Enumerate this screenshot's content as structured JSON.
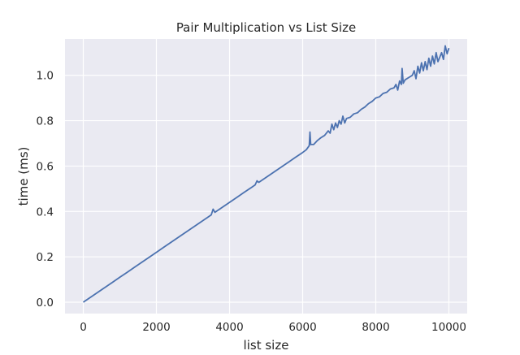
{
  "chart_data": {
    "type": "line",
    "title": "Pair Multiplication vs List Size",
    "xlabel": "list size",
    "ylabel": "time (ms)",
    "xlim": [
      -500,
      10500
    ],
    "ylim": [
      -0.05,
      1.16
    ],
    "x_ticks": [
      0,
      2000,
      4000,
      6000,
      8000,
      10000
    ],
    "y_ticks": [
      0.0,
      0.2,
      0.4,
      0.6,
      0.8,
      1.0
    ],
    "x_tick_labels": [
      "0",
      "2000",
      "4000",
      "6000",
      "8000",
      "10000"
    ],
    "y_tick_labels": [
      "0.0",
      "0.2",
      "0.4",
      "0.6",
      "0.8",
      "1.0"
    ],
    "grid": true,
    "legend": "none",
    "colors": {
      "background": "#eaeaf2",
      "grid": "#ffffff",
      "line": "#4c72b0",
      "text": "#262626"
    },
    "series": [
      {
        "x": [
          0,
          200,
          400,
          600,
          800,
          1000,
          1200,
          1400,
          1600,
          1800,
          2000,
          2200,
          2400,
          2600,
          2800,
          3000,
          3200,
          3400,
          3500,
          3550,
          3600,
          3800,
          4000,
          4200,
          4400,
          4600,
          4700,
          4750,
          4800,
          5000,
          5200,
          5400,
          5600,
          5800,
          6000,
          6100,
          6180,
          6200,
          6220,
          6300,
          6400,
          6500,
          6600,
          6700,
          6750,
          6800,
          6850,
          6900,
          6950,
          7000,
          7050,
          7100,
          7150,
          7200,
          7300,
          7400,
          7500,
          7600,
          7700,
          7800,
          7900,
          8000,
          8100,
          8200,
          8300,
          8400,
          8500,
          8550,
          8600,
          8650,
          8700,
          8720,
          8750,
          8800,
          8900,
          9000,
          9050,
          9100,
          9150,
          9200,
          9250,
          9300,
          9350,
          9400,
          9450,
          9500,
          9550,
          9600,
          9650,
          9700,
          9750,
          9800,
          9850,
          9900,
          9950,
          10000
        ],
        "y": [
          0.0,
          0.022,
          0.044,
          0.066,
          0.088,
          0.11,
          0.132,
          0.154,
          0.176,
          0.198,
          0.22,
          0.242,
          0.264,
          0.286,
          0.308,
          0.33,
          0.352,
          0.374,
          0.385,
          0.41,
          0.396,
          0.418,
          0.44,
          0.462,
          0.484,
          0.506,
          0.517,
          0.535,
          0.528,
          0.55,
          0.572,
          0.594,
          0.616,
          0.638,
          0.66,
          0.672,
          0.69,
          0.75,
          0.695,
          0.695,
          0.712,
          0.725,
          0.735,
          0.755,
          0.745,
          0.785,
          0.76,
          0.79,
          0.77,
          0.8,
          0.785,
          0.82,
          0.79,
          0.81,
          0.815,
          0.83,
          0.835,
          0.85,
          0.86,
          0.875,
          0.885,
          0.9,
          0.905,
          0.92,
          0.925,
          0.94,
          0.945,
          0.96,
          0.935,
          0.975,
          0.96,
          1.03,
          0.965,
          0.98,
          0.99,
          1.0,
          1.02,
          0.985,
          1.04,
          1.01,
          1.055,
          1.02,
          1.06,
          1.025,
          1.075,
          1.04,
          1.085,
          1.05,
          1.1,
          1.06,
          1.08,
          1.1,
          1.07,
          1.13,
          1.095,
          1.12
        ]
      }
    ]
  }
}
